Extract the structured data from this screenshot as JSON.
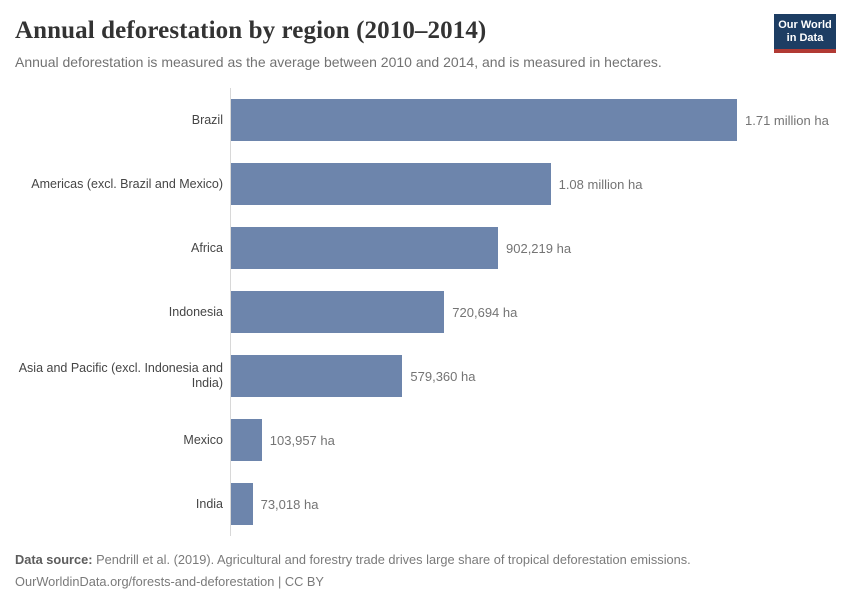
{
  "logo": {
    "line1": "Our World",
    "line2": "in Data",
    "bg_color": "#1d3d63",
    "accent_color": "#b13a34"
  },
  "chart_data": {
    "type": "bar",
    "orientation": "horizontal",
    "title": "Annual deforestation by region (2010–2014)",
    "subtitle": "Annual deforestation is measured as the average between 2010 and 2014, and is measured in hectares.",
    "unit": "hectares",
    "bar_color": "#6d85ac",
    "axis_line_color": "#d8d8d8",
    "legend_position": "none",
    "grid": false,
    "xlim": [
      0,
      1710000
    ],
    "categories": [
      "Brazil",
      "Americas (excl. Brazil and Mexico)",
      "Africa",
      "Indonesia",
      "Asia and Pacific (excl. Indonesia and India)",
      "Mexico",
      "India"
    ],
    "values": [
      1710000,
      1080000,
      902219,
      720694,
      579360,
      103957,
      73018
    ],
    "value_labels": [
      "1.71 million ha",
      "1.08 million ha",
      "902,219 ha",
      "720,694 ha",
      "579,360 ha",
      "103,957 ha",
      "73,018 ha"
    ]
  },
  "footer": {
    "data_source_label": "Data source:",
    "data_source_text": "Pendrill et al. (2019). Agricultural and forestry trade drives large share of tropical deforestation emissions.",
    "link": "OurWorldinData.org/forests-and-deforestation",
    "separator": " | ",
    "license": "CC BY"
  }
}
